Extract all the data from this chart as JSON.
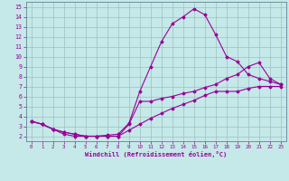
{
  "xlabel": "Windchill (Refroidissement éolien,°C)",
  "background_color": "#c5e8e8",
  "line_color": "#990099",
  "grid_color": "#9fbfbf",
  "xlim": [
    -0.5,
    23.5
  ],
  "ylim": [
    1.5,
    15.5
  ],
  "xticks": [
    0,
    1,
    2,
    3,
    4,
    5,
    6,
    7,
    8,
    9,
    10,
    11,
    12,
    13,
    14,
    15,
    16,
    17,
    18,
    19,
    20,
    21,
    22,
    23
  ],
  "yticks": [
    2,
    3,
    4,
    5,
    6,
    7,
    8,
    9,
    10,
    11,
    12,
    13,
    14,
    15
  ],
  "line1_x": [
    0,
    1,
    2,
    3,
    4,
    5,
    6,
    7,
    8,
    9,
    10,
    11,
    12,
    13,
    14,
    15,
    16,
    17,
    18,
    19,
    20,
    21,
    22,
    23
  ],
  "line1_y": [
    3.5,
    3.2,
    2.7,
    2.2,
    2.0,
    2.0,
    2.0,
    2.1,
    2.2,
    3.3,
    6.5,
    9.0,
    11.5,
    13.3,
    14.0,
    14.8,
    14.2,
    12.2,
    10.0,
    9.5,
    8.2,
    7.8,
    7.5,
    7.2
  ],
  "line2_x": [
    0,
    1,
    2,
    3,
    4,
    5,
    6,
    7,
    8,
    9,
    10,
    11,
    12,
    13,
    14,
    15,
    16,
    17,
    18,
    19,
    20,
    21,
    22,
    23
  ],
  "line2_y": [
    3.5,
    3.2,
    2.7,
    2.4,
    2.2,
    2.0,
    2.0,
    2.0,
    2.0,
    3.2,
    5.5,
    5.5,
    5.8,
    6.0,
    6.3,
    6.5,
    6.9,
    7.2,
    7.8,
    8.2,
    9.0,
    9.4,
    7.8,
    7.2
  ],
  "line3_x": [
    0,
    1,
    2,
    3,
    4,
    5,
    6,
    7,
    8,
    9,
    10,
    11,
    12,
    13,
    14,
    15,
    16,
    17,
    18,
    19,
    20,
    21,
    22,
    23
  ],
  "line3_y": [
    3.5,
    3.2,
    2.7,
    2.4,
    2.2,
    2.0,
    2.0,
    2.0,
    2.0,
    2.6,
    3.2,
    3.8,
    4.3,
    4.8,
    5.2,
    5.6,
    6.1,
    6.5,
    6.5,
    6.5,
    6.8,
    7.0,
    7.0,
    7.0
  ]
}
